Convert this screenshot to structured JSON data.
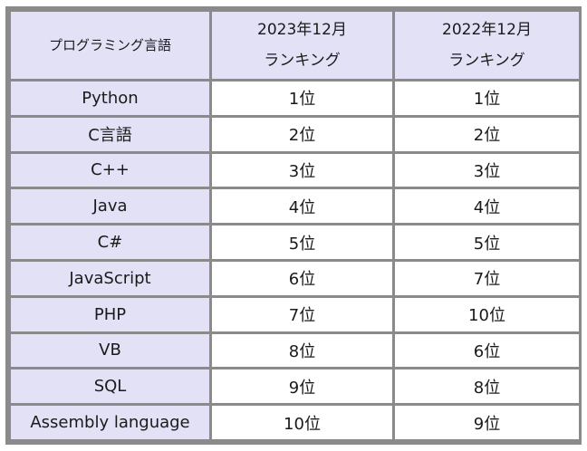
{
  "table": {
    "header": {
      "language": "プログラミング言語",
      "col2_line1": "2023年12月",
      "col2_line2": "ランキング",
      "col3_line1": "2022年12月",
      "col3_line2": "ランキング"
    },
    "rows": [
      {
        "language": "Python",
        "rank_2023": "1位",
        "rank_2022": "1位"
      },
      {
        "language": "C言語",
        "rank_2023": "2位",
        "rank_2022": "2位"
      },
      {
        "language": "C++",
        "rank_2023": "3位",
        "rank_2022": "3位"
      },
      {
        "language": "Java",
        "rank_2023": "4位",
        "rank_2022": "4位"
      },
      {
        "language": "C#",
        "rank_2023": "5位",
        "rank_2022": "5位"
      },
      {
        "language": "JavaScript",
        "rank_2023": "6位",
        "rank_2022": "7位"
      },
      {
        "language": "PHP",
        "rank_2023": "7位",
        "rank_2022": "10位"
      },
      {
        "language": "VB",
        "rank_2023": "8位",
        "rank_2022": "6位"
      },
      {
        "language": "SQL",
        "rank_2023": "9位",
        "rank_2022": "8位"
      },
      {
        "language": "Assembly language",
        "rank_2023": "10位",
        "rank_2022": "9位"
      }
    ]
  },
  "colors": {
    "header_bg": "#e2e1f5",
    "border": "#8a8a8a",
    "cell_bg": "#ffffff"
  }
}
